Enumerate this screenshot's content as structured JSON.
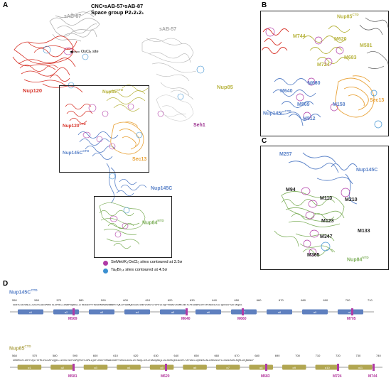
{
  "panels": {
    "a": {
      "letter": "A",
      "title_line1": "CNC•sAB-57•sAB-87",
      "title_line2": "Space group P2₁2₁2₁",
      "labels": {
        "sab87": "sAB-87",
        "sab57": "sAB-57",
        "oscl": "OsCl₆ site",
        "nup120": "Nup120",
        "nup85": "Nup85",
        "seh1": "Seh1",
        "nup85ctd": "Nup85",
        "nup120ctd": "Nup120",
        "nup145cctd": "Nup145C",
        "sec13": "Sec13",
        "nup145c": "Nup145C",
        "nup84ntd": "Nup84"
      },
      "sup_ctd": "CTD",
      "sup_ntd": "NTD",
      "legend": [
        {
          "text": "SeMet/K₂OsCl₆ sites contoured at 3.5σ",
          "color": "#b03aa6"
        },
        {
          "text": "Ta₆Br₁₄ sites contoured at 4.5σ",
          "color": "#3a8fd0"
        }
      ]
    },
    "b": {
      "letter": "B",
      "labels": {
        "nup85ctd": "Nup85",
        "m744": "M744",
        "m620": "M620",
        "m581": "M581",
        "m683": "M683",
        "m724": "M724",
        "m640": "M640",
        "m660": "M660",
        "m569": "M569",
        "m158": "M158",
        "m512": "M512",
        "sec13": "Sec13",
        "nup145cctd": "Nup145C"
      }
    },
    "c": {
      "letter": "C",
      "labels": {
        "m257": "M257",
        "nup145c": "Nup145C",
        "m94": "M94",
        "m110": "M110",
        "m210": "M210",
        "m123": "M123",
        "m347": "M347",
        "m133": "M133",
        "m365": "M365",
        "nup84ntd": "Nup84"
      }
    },
    "d": {
      "letter": "D",
      "track1": {
        "name": "Nup145C",
        "sup": "CTD",
        "numbers": [
          "550",
          "560",
          "570",
          "580",
          "590",
          "600",
          "610",
          "620",
          "630",
          "640",
          "650",
          "660",
          "670",
          "680",
          "690",
          "700",
          "710"
        ],
        "sequence": "SDNYLSEVGNLLLGSSYSLAESMVNTSLSPRELLENNPVQNNLLITREASEPFYRDSEMDKWRDNWNPEYQKLVFAAMQEEGGSTDNEVSKSFIFDPEVISQFYKNAVLRSMEINEYLPESGNNVIKFEPENDESDLGTQDSSSFSATSKQGS",
        "helices": [
          "α1",
          "α2",
          "α3",
          "α4",
          "α5",
          "α6",
          "α7",
          "α8",
          "α9",
          "α10"
        ],
        "markers": [
          "M569",
          "M640",
          "M660",
          "M705"
        ]
      },
      "track2": {
        "name": "Nup85",
        "sup": "CTD",
        "numbers": [
          "568",
          "570",
          "580",
          "590",
          "600",
          "610",
          "620",
          "630",
          "640",
          "650",
          "660",
          "670",
          "680",
          "690",
          "700",
          "710",
          "720",
          "730",
          "740"
        ],
        "sequence": "SHNMSSFIDRFFDQLYSFMLSVLEAPIQQELIIRSSTSEFGSMQPSVYLNMLIQDFLRSEFRKNAEDGNPFSKSELASSLIRTNSQLIEKLFAKDQAKQLLSLRDHGQEEAIKPLYAPSAEIIQNSRALNLLHNGSEDFLISGSEASRLKQMLIKQWGNLP",
        "helices": [
          "α1",
          "α2",
          "α3",
          "α4",
          "α5",
          "α6",
          "α7",
          "α8",
          "α9",
          "α10",
          "α11"
        ],
        "markers": [
          "M581",
          "M620",
          "M683",
          "M724",
          "M744"
        ]
      }
    }
  },
  "colors": {
    "nup120": "#d8362c",
    "nup85": "#b8b440",
    "seh1": "#9a2f8e",
    "sec13": "#e8a136",
    "nup145c": "#5a82c8",
    "nup84": "#7fb05c",
    "sab": "#a8a8a8",
    "semet": "#b03aa6",
    "ta": "#3a8fd0",
    "helix_145": "#5f80bf",
    "helix_85": "#b1a651"
  }
}
